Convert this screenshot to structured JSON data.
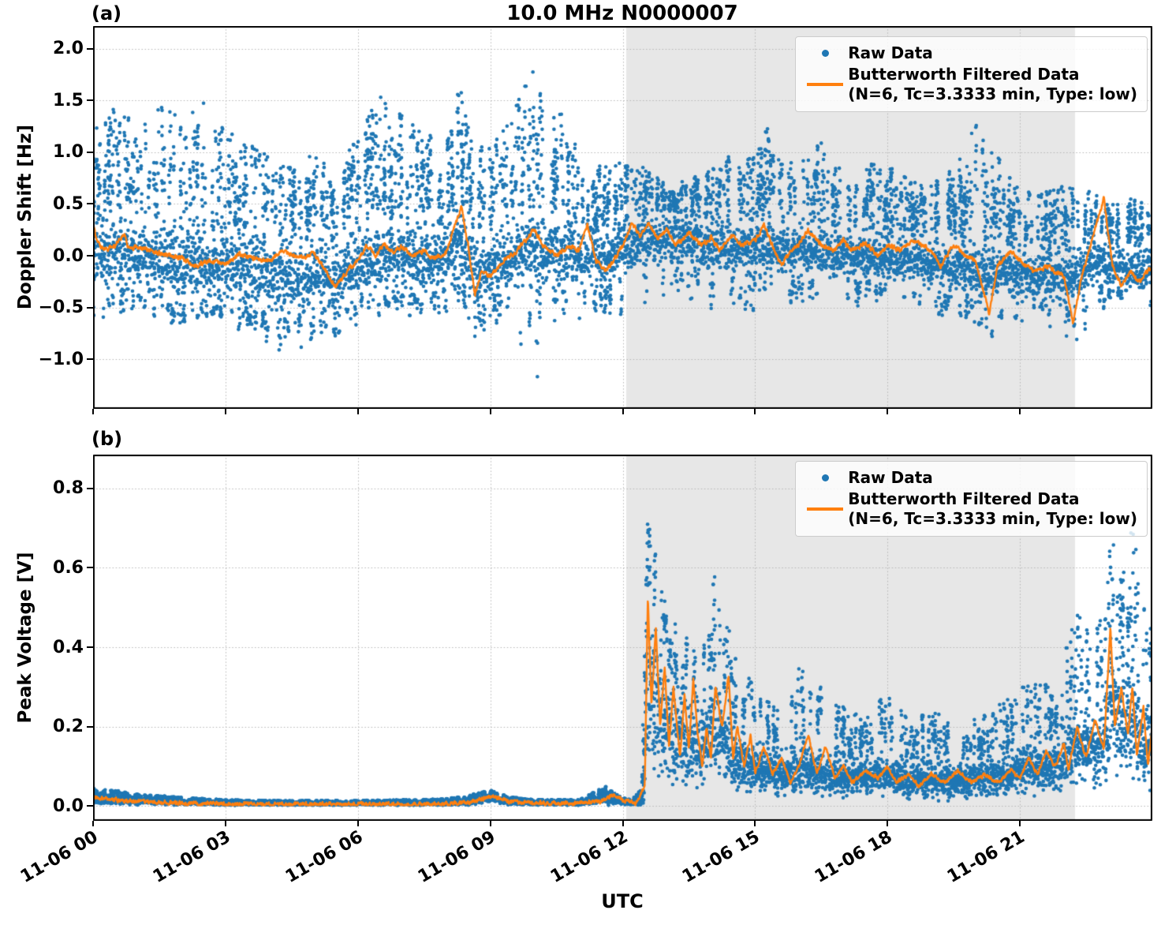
{
  "figure": {
    "title": "10.0 MHz N0000007",
    "xlabel": "UTC",
    "colors": {
      "raw": "#1f77b4",
      "filtered": "#ff7f0e",
      "shade": "#e7e7e7",
      "grid": "#b5b5b5",
      "axis": "#000000",
      "legend_border": "#cccccc"
    },
    "legend": {
      "raw_label": "Raw Data",
      "filtered_label": "Butterworth Filtered Data",
      "filtered_sublabel": "(N=6, Tc=3.3333 min, Type: low)"
    }
  },
  "chart_data": [
    {
      "panel": "(a)",
      "type": "scatter+line",
      "ylabel": "Doppler Shift [Hz]",
      "ylim": [
        -1.48,
        2.22
      ],
      "yticks": [
        2.0,
        1.5,
        1.0,
        0.5,
        0.0,
        -0.5,
        -1.0
      ],
      "ytick_labels": [
        "2.0",
        "1.5",
        "1.0",
        "0.5",
        "0.0",
        "−0.5",
        "−1.0"
      ],
      "xlim_hours": [
        0,
        24
      ],
      "xticks_hours": [
        0,
        3,
        6,
        9,
        12,
        15,
        18,
        21
      ],
      "xtick_labels": [
        "11-06 00",
        "11-06 03",
        "11-06 06",
        "11-06 09",
        "11-06 12",
        "11-06 15",
        "11-06 18",
        "11-06 21"
      ],
      "shade_region_hours": [
        12.08,
        22.25
      ],
      "grid": true,
      "legend_position": "upper right",
      "series": {
        "raw_envelope": {
          "points_per_step": 3,
          "spike_prob": 0.3,
          "low_prob": 0.14,
          "x": [
            0,
            0.5,
            1,
            1.5,
            2,
            2.5,
            3,
            3.5,
            4,
            4.5,
            5,
            5.5,
            6,
            6.5,
            7,
            7.5,
            8,
            8.3,
            8.7,
            9,
            9.5,
            10,
            10.5,
            11,
            11.5,
            12,
            12.5,
            13,
            13.5,
            14,
            14.5,
            15,
            15.3,
            15.6,
            16,
            16.5,
            17,
            17.5,
            18,
            18.5,
            19,
            19.5,
            20,
            20.3,
            20.6,
            21,
            21.5,
            22,
            22.3,
            22.7,
            23,
            23.5,
            24
          ],
          "center": [
            0.05,
            0.05,
            0.0,
            -0.05,
            -0.1,
            -0.1,
            -0.1,
            -0.15,
            -0.2,
            -0.25,
            -0.2,
            -0.25,
            -0.1,
            -0.05,
            0.0,
            -0.05,
            0.0,
            0.15,
            -0.15,
            -0.1,
            0.0,
            0.1,
            0.05,
            0.0,
            -0.05,
            0.05,
            0.15,
            0.2,
            0.15,
            0.1,
            0.12,
            0.1,
            0.1,
            0.05,
            0.05,
            0.05,
            0.0,
            0.0,
            -0.05,
            -0.05,
            -0.1,
            -0.1,
            -0.15,
            -0.2,
            -0.15,
            -0.2,
            -0.2,
            -0.25,
            -0.2,
            0.0,
            -0.1,
            -0.15,
            -0.1
          ],
          "band": [
            0.45,
            0.42,
            0.4,
            0.42,
            0.45,
            0.42,
            0.4,
            0.42,
            0.45,
            0.45,
            0.42,
            0.4,
            0.38,
            0.4,
            0.4,
            0.38,
            0.35,
            0.45,
            0.4,
            0.35,
            0.38,
            0.42,
            0.4,
            0.35,
            0.32,
            0.32,
            0.3,
            0.28,
            0.28,
            0.3,
            0.3,
            0.3,
            0.3,
            0.28,
            0.28,
            0.3,
            0.28,
            0.28,
            0.28,
            0.26,
            0.26,
            0.28,
            0.3,
            0.32,
            0.28,
            0.26,
            0.26,
            0.28,
            0.3,
            0.3,
            0.26,
            0.26,
            0.3
          ],
          "spike_top": [
            1.2,
            1.45,
            1.3,
            1.5,
            1.3,
            1.5,
            1.25,
            1.1,
            0.95,
            0.85,
            1.0,
            0.9,
            1.2,
            1.55,
            1.35,
            1.2,
            1.05,
            1.75,
            1.1,
            1.1,
            1.35,
            2.0,
            1.5,
            1.2,
            0.95,
            0.9,
            0.85,
            0.7,
            0.75,
            0.85,
            1.0,
            0.95,
            1.3,
            0.9,
            0.9,
            1.1,
            0.85,
            0.9,
            0.9,
            0.75,
            0.7,
            0.9,
            1.3,
            1.1,
            0.9,
            0.65,
            0.6,
            0.7,
            0.75,
            0.6,
            0.5,
            0.55,
            0.5
          ],
          "low_tail": [
            -0.65,
            -0.6,
            -0.6,
            -0.65,
            -0.75,
            -0.7,
            -0.7,
            -0.8,
            -0.9,
            -0.95,
            -0.9,
            -0.85,
            -0.65,
            -0.6,
            -0.6,
            -0.65,
            -0.6,
            -0.6,
            -0.9,
            -0.7,
            -0.8,
            -1.35,
            -0.8,
            -0.7,
            -0.6,
            -0.6,
            -0.5,
            -0.45,
            -0.5,
            -0.55,
            -0.6,
            -0.55,
            -0.6,
            -0.5,
            -0.5,
            -0.55,
            -0.5,
            -0.55,
            -0.5,
            -0.5,
            -0.6,
            -0.6,
            -0.8,
            -1.05,
            -0.7,
            -0.7,
            -0.65,
            -0.9,
            -1.05,
            -0.6,
            -0.5,
            -0.6,
            -0.55
          ]
        },
        "filtered": {
          "jitter": 0.035,
          "x": [
            0,
            0.1,
            0.3,
            0.5,
            0.7,
            0.8,
            1.0,
            1.3,
            1.7,
            2.0,
            2.3,
            2.6,
            3.0,
            3.3,
            3.6,
            4.0,
            4.3,
            4.6,
            5.0,
            5.2,
            5.5,
            5.8,
            6.0,
            6.2,
            6.4,
            6.6,
            6.8,
            7.0,
            7.2,
            7.5,
            7.7,
            8.0,
            8.2,
            8.35,
            8.5,
            8.65,
            8.8,
            9.0,
            9.3,
            9.6,
            9.8,
            10.0,
            10.2,
            10.5,
            10.8,
            11.0,
            11.2,
            11.4,
            11.6,
            11.8,
            12.0,
            12.2,
            12.4,
            12.6,
            12.8,
            13.0,
            13.2,
            13.5,
            13.8,
            14.0,
            14.2,
            14.5,
            14.7,
            15.0,
            15.2,
            15.4,
            15.6,
            15.8,
            16.0,
            16.2,
            16.5,
            16.8,
            17.0,
            17.2,
            17.5,
            17.8,
            18.0,
            18.3,
            18.6,
            19.0,
            19.2,
            19.5,
            19.8,
            20.0,
            20.3,
            20.5,
            20.8,
            21.0,
            21.3,
            21.6,
            22.0,
            22.2,
            22.4,
            22.6,
            22.9,
            23.1,
            23.3,
            23.5,
            23.7,
            24.0
          ],
          "y": [
            0.3,
            0.12,
            0.05,
            0.1,
            0.22,
            0.08,
            0.08,
            0.05,
            0.0,
            -0.02,
            -0.1,
            -0.05,
            -0.08,
            0.02,
            -0.02,
            -0.05,
            0.05,
            -0.02,
            0.02,
            -0.1,
            -0.3,
            -0.12,
            -0.05,
            0.1,
            0.0,
            0.12,
            0.02,
            0.1,
            0.0,
            0.05,
            -0.02,
            0.02,
            0.3,
            0.48,
            0.1,
            -0.38,
            -0.15,
            -0.2,
            -0.05,
            0.05,
            0.15,
            0.25,
            0.1,
            0.0,
            0.1,
            0.05,
            0.3,
            -0.05,
            -0.15,
            -0.05,
            0.1,
            0.3,
            0.2,
            0.32,
            0.15,
            0.25,
            0.1,
            0.22,
            0.1,
            0.18,
            0.05,
            0.2,
            0.1,
            0.15,
            0.3,
            0.1,
            -0.1,
            0.05,
            0.12,
            0.25,
            0.1,
            0.05,
            0.15,
            0.05,
            0.12,
            0.0,
            0.1,
            0.05,
            0.15,
            0.05,
            -0.1,
            0.1,
            0.0,
            -0.05,
            -0.55,
            -0.1,
            0.05,
            -0.05,
            -0.15,
            -0.1,
            -0.2,
            -0.65,
            -0.2,
            0.1,
            0.55,
            -0.1,
            -0.3,
            -0.15,
            -0.25,
            -0.1
          ]
        }
      }
    },
    {
      "panel": "(b)",
      "type": "scatter+line",
      "ylabel": "Peak Voltage [V]",
      "ylim": [
        -0.037,
        0.885
      ],
      "clamp_min": 0.002,
      "yticks": [
        0.8,
        0.6,
        0.4,
        0.2,
        0.0
      ],
      "ytick_labels": [
        "0.8",
        "0.6",
        "0.4",
        "0.2",
        "0.0"
      ],
      "xlim_hours": [
        0,
        24
      ],
      "xticks_hours": [
        0,
        3,
        6,
        9,
        12,
        15,
        18,
        21
      ],
      "xtick_labels": [
        "11-06 00",
        "11-06 03",
        "11-06 06",
        "11-06 09",
        "11-06 12",
        "11-06 15",
        "11-06 18",
        "11-06 21"
      ],
      "shade_region_hours": [
        12.08,
        22.25
      ],
      "grid": true,
      "legend_position": "upper right",
      "series": {
        "raw_envelope": {
          "points_per_step": 4,
          "spike_prob": 0.22,
          "low_prob": 0,
          "x": [
            0,
            0.5,
            1,
            2,
            3,
            4,
            6,
            8,
            8.6,
            9,
            9.4,
            10,
            11,
            11.6,
            11.9,
            12.2,
            12.45,
            12.55,
            12.7,
            13,
            13.4,
            13.8,
            14.2,
            14.5,
            15,
            15.5,
            16,
            16.5,
            17,
            17.5,
            18,
            18.5,
            19,
            19.5,
            20,
            20.5,
            21,
            21.3,
            21.7,
            22,
            22.3,
            22.6,
            22.9,
            23.1,
            23.3,
            23.6,
            23.8,
            24
          ],
          "center": [
            0.02,
            0.018,
            0.015,
            0.01,
            0.008,
            0.007,
            0.007,
            0.008,
            0.012,
            0.022,
            0.012,
            0.008,
            0.008,
            0.02,
            0.012,
            0.008,
            0.01,
            0.3,
            0.28,
            0.2,
            0.16,
            0.15,
            0.2,
            0.12,
            0.1,
            0.08,
            0.09,
            0.08,
            0.07,
            0.07,
            0.08,
            0.06,
            0.07,
            0.06,
            0.07,
            0.07,
            0.09,
            0.1,
            0.1,
            0.12,
            0.14,
            0.14,
            0.15,
            0.25,
            0.2,
            0.22,
            0.15,
            0.18
          ],
          "band": [
            0.018,
            0.015,
            0.012,
            0.009,
            0.007,
            0.006,
            0.006,
            0.007,
            0.01,
            0.015,
            0.01,
            0.007,
            0.007,
            0.018,
            0.01,
            0.007,
            0.01,
            0.28,
            0.25,
            0.18,
            0.13,
            0.12,
            0.16,
            0.1,
            0.08,
            0.06,
            0.07,
            0.06,
            0.055,
            0.055,
            0.06,
            0.05,
            0.055,
            0.05,
            0.055,
            0.055,
            0.07,
            0.08,
            0.08,
            0.1,
            0.11,
            0.11,
            0.12,
            0.2,
            0.16,
            0.18,
            0.12,
            0.14
          ],
          "spike_top": [
            0.045,
            0.04,
            0.03,
            0.022,
            0.016,
            0.014,
            0.014,
            0.018,
            0.03,
            0.04,
            0.025,
            0.016,
            0.016,
            0.05,
            0.025,
            0.016,
            0.05,
            0.74,
            0.65,
            0.5,
            0.42,
            0.45,
            0.64,
            0.4,
            0.3,
            0.25,
            0.35,
            0.3,
            0.25,
            0.22,
            0.3,
            0.22,
            0.25,
            0.2,
            0.22,
            0.25,
            0.3,
            0.32,
            0.3,
            0.4,
            0.5,
            0.45,
            0.5,
            0.85,
            0.65,
            0.72,
            0.5,
            0.45
          ],
          "low_tail": null
        },
        "filtered": {
          "jitter": 0.008,
          "x": [
            0,
            0.3,
            0.6,
            1.0,
            1.5,
            2.0,
            3.0,
            4.0,
            5.0,
            6.0,
            7.0,
            8.0,
            8.5,
            8.9,
            9.1,
            9.4,
            10.0,
            10.5,
            11.0,
            11.5,
            11.8,
            12.0,
            12.3,
            12.5,
            12.57,
            12.65,
            12.75,
            12.85,
            12.95,
            13.05,
            13.15,
            13.3,
            13.4,
            13.5,
            13.6,
            13.7,
            13.8,
            13.9,
            14.0,
            14.1,
            14.25,
            14.4,
            14.5,
            14.6,
            14.75,
            14.9,
            15.0,
            15.2,
            15.4,
            15.6,
            15.8,
            16.0,
            16.2,
            16.4,
            16.6,
            16.8,
            17.0,
            17.2,
            17.5,
            17.8,
            18.0,
            18.2,
            18.5,
            18.7,
            19.0,
            19.3,
            19.6,
            19.9,
            20.2,
            20.5,
            20.8,
            21.0,
            21.2,
            21.4,
            21.6,
            21.8,
            22.0,
            22.1,
            22.3,
            22.5,
            22.7,
            22.9,
            23.05,
            23.15,
            23.3,
            23.45,
            23.55,
            23.65,
            23.8,
            23.9,
            24.0
          ],
          "y": [
            0.022,
            0.018,
            0.015,
            0.012,
            0.01,
            0.008,
            0.006,
            0.005,
            0.005,
            0.005,
            0.005,
            0.006,
            0.008,
            0.022,
            0.025,
            0.012,
            0.008,
            0.007,
            0.008,
            0.012,
            0.03,
            0.015,
            0.008,
            0.05,
            0.53,
            0.25,
            0.45,
            0.2,
            0.35,
            0.15,
            0.3,
            0.12,
            0.28,
            0.14,
            0.32,
            0.18,
            0.1,
            0.2,
            0.12,
            0.3,
            0.2,
            0.33,
            0.12,
            0.2,
            0.1,
            0.18,
            0.08,
            0.15,
            0.08,
            0.12,
            0.06,
            0.1,
            0.18,
            0.08,
            0.15,
            0.07,
            0.1,
            0.06,
            0.09,
            0.07,
            0.1,
            0.06,
            0.08,
            0.05,
            0.08,
            0.06,
            0.09,
            0.06,
            0.08,
            0.06,
            0.09,
            0.07,
            0.12,
            0.08,
            0.14,
            0.1,
            0.16,
            0.09,
            0.2,
            0.12,
            0.22,
            0.14,
            0.45,
            0.2,
            0.3,
            0.18,
            0.3,
            0.12,
            0.25,
            0.1,
            0.2
          ]
        }
      }
    }
  ]
}
